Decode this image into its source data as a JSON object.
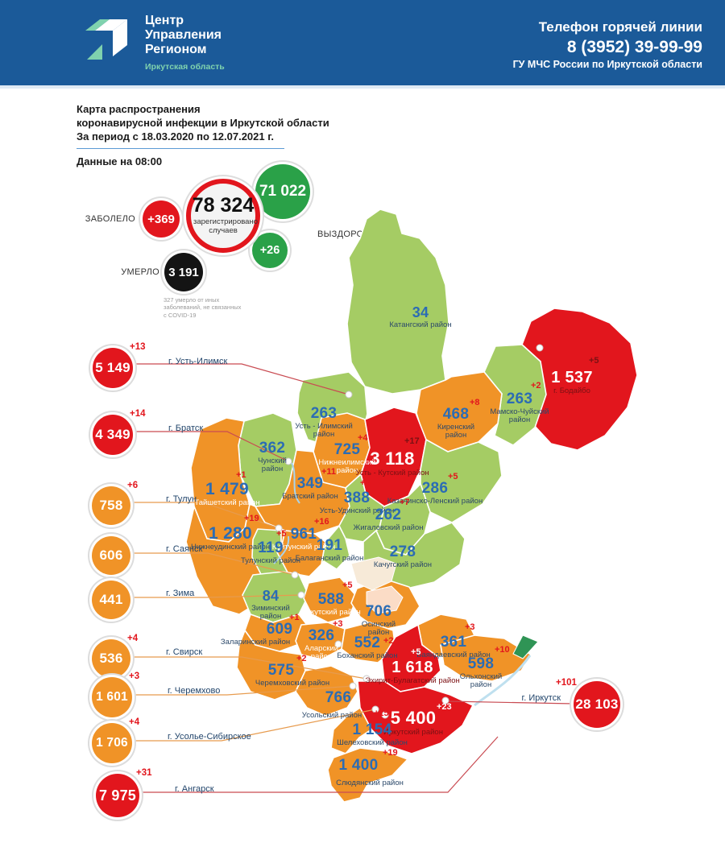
{
  "header": {
    "org_line1": "Центр",
    "org_line2": "Управления",
    "org_line3": "Регионом",
    "org_region": "Иркутская область",
    "hotline_title": "Телефон горячей линии",
    "hotline_phone": "8 (3952) 39-99-99",
    "hotline_org": "ГУ МЧС России по Иркутской области"
  },
  "title": {
    "line1": "Карта распространения",
    "line2": "коронавирусной инфекции в Иркутской области",
    "line3": "За период с 18.03.2020 по 12.07.2021 г.",
    "data_time": "Данные на 08:00"
  },
  "stats": {
    "sick_label": "ЗАБОЛЕЛО",
    "sick_delta": "+369",
    "registered_value": "78 324",
    "registered_caption": "зарегистрировано случаев",
    "recovered_value": "71 022",
    "recovered_label": "ВЫЗДОРОВЕЛО",
    "recovered_delta": "+26",
    "died_label": "УМЕРЛО",
    "died_value": "3 191",
    "died_footnote": "327 умерло от иных заболеваний, не связанных с COVID-19"
  },
  "colors": {
    "header_bg": "#1b5a99",
    "logo_green": "#7fd2ae",
    "status": {
      "green": "#a5cc64",
      "orange": "#f09327",
      "red": "#e2161d"
    },
    "stat_green": "#2aa148",
    "stat_red": "#e2161d",
    "stat_black": "#141414",
    "number_blue": "#2b6cb4",
    "label_navy": "#2d4a6b",
    "label_maroon": "#7c1114",
    "delta_red": "#e2161d",
    "line_red": "#c94b52",
    "line_orange": "#e79b4e"
  },
  "cities": [
    {
      "id": "ust_ilimsk",
      "name": "г. Усть-Илимск",
      "value": "5 149",
      "delta": "+13",
      "status": "red"
    },
    {
      "id": "bratsk",
      "name": "г. Братск",
      "value": "4 349",
      "delta": "+14",
      "status": "red"
    },
    {
      "id": "tulun",
      "name": "г. Тулун",
      "value": "758",
      "delta": "+6",
      "status": "orange"
    },
    {
      "id": "sayansk",
      "name": "г. Саянск",
      "value": "606",
      "delta": "",
      "status": "orange"
    },
    {
      "id": "zima",
      "name": "г. Зима",
      "value": "441",
      "delta": "",
      "status": "orange"
    },
    {
      "id": "svirsk",
      "name": "г. Свирск",
      "value": "536",
      "delta": "+4",
      "status": "orange"
    },
    {
      "id": "cheremkhovo",
      "name": "г. Черемхово",
      "value": "1 601",
      "delta": "+3",
      "status": "orange"
    },
    {
      "id": "usolye",
      "name": "г. Усолье-Сибирское",
      "value": "1 706",
      "delta": "+4",
      "status": "orange"
    },
    {
      "id": "angarsk",
      "name": "г. Ангарск",
      "value": "7 975",
      "delta": "+31",
      "status": "red"
    },
    {
      "id": "irkutsk",
      "name": "г. Иркутск",
      "value": "28 103",
      "delta": "+101",
      "status": "red"
    }
  ],
  "districts": [
    {
      "id": "katangsky",
      "name": "Катангский район",
      "value": "34",
      "delta": "",
      "status": "green"
    },
    {
      "id": "ust_ilimsky",
      "name": "Усть - Илимский район",
      "value": "263",
      "delta": "",
      "status": "green"
    },
    {
      "id": "kirensky",
      "name": "Киренский район",
      "value": "468",
      "delta": "+8",
      "status": "orange"
    },
    {
      "id": "mamsko_chuysky",
      "name": "Мамско-Чуйский район",
      "value": "263",
      "delta": "+2",
      "status": "green"
    },
    {
      "id": "bodaibinsky",
      "name": "г. Бодайбо",
      "value": "1 537",
      "delta": "+5",
      "status": "red"
    },
    {
      "id": "chunsky",
      "name": "Чунский район",
      "value": "362",
      "delta": "",
      "status": "green"
    },
    {
      "id": "nizhneilimsky",
      "name": "Нижнеилимский район",
      "value": "725",
      "delta": "+4",
      "status": "orange"
    },
    {
      "id": "ust_kutsky",
      "name": "Усть - Кутский район",
      "value": "3 118",
      "delta": "+17",
      "status": "red"
    },
    {
      "id": "kazachinsko_lensky",
      "name": "Казачинско-Ленский район",
      "value": "286",
      "delta": "+5",
      "status": "green"
    },
    {
      "id": "taishetsky",
      "name": "Тайшетский район",
      "value": "1 479",
      "delta": "+1",
      "status": "orange"
    },
    {
      "id": "bratsky",
      "name": "Братский район",
      "value": "349",
      "delta": "+11",
      "status": "orange"
    },
    {
      "id": "ust_udinsky",
      "name": "Усть-Удинский район",
      "value": "388",
      "delta": "+5",
      "status": "green"
    },
    {
      "id": "zhigalovsky",
      "name": "Жигаловский район",
      "value": "262",
      "delta": "+7",
      "status": "green"
    },
    {
      "id": "kachugsky",
      "name": "Качугский район",
      "value": "278",
      "delta": "",
      "status": "green"
    },
    {
      "id": "nizhneudinsky",
      "name": "Нижнеудинский район",
      "value": "1 280",
      "delta": "+19",
      "status": "orange"
    },
    {
      "id": "kuitunsky",
      "name": "Куйтунский район",
      "value": "961",
      "delta": "+16",
      "status": "orange"
    },
    {
      "id": "tulunsky",
      "name": "Тулунский район",
      "value": "119",
      "delta": "+5",
      "status": "green"
    },
    {
      "id": "balagansky",
      "name": "Балаганский район",
      "value": "191",
      "delta": "",
      "status": "green"
    },
    {
      "id": "ziminsky",
      "name": "Зиминский район",
      "value": "84",
      "delta": "",
      "status": "green"
    },
    {
      "id": "nukutsky",
      "name": "Нукутский район",
      "value": "588",
      "delta": "+5",
      "status": "orange"
    },
    {
      "id": "zalarinsky",
      "name": "Заларинский район",
      "value": "609",
      "delta": "+1",
      "status": "orange"
    },
    {
      "id": "alarsky",
      "name": "Аларский район",
      "value": "326",
      "delta": "+3",
      "status": "orange"
    },
    {
      "id": "osinsky",
      "name": "Осинский район",
      "value": "706",
      "delta": "",
      "status": "orange"
    },
    {
      "id": "bokhansky",
      "name": "Боханский район",
      "value": "552",
      "delta": "+2",
      "status": "orange"
    },
    {
      "id": "bayandaevsky",
      "name": "Баяндаевский район",
      "value": "361",
      "delta": "+3",
      "status": "orange"
    },
    {
      "id": "ekhirit_bulagatsky",
      "name": "Эхирит-Булагатский район",
      "value": "1 618",
      "delta": "+5",
      "status": "red"
    },
    {
      "id": "olkhonsky",
      "name": "Ольхонский район",
      "value": "598",
      "delta": "+10",
      "status": "orange"
    },
    {
      "id": "cheremkhovsky",
      "name": "Черемховский район",
      "value": "575",
      "delta": "+2",
      "status": "orange"
    },
    {
      "id": "usolsky",
      "name": "Усольский район",
      "value": "766",
      "delta": "",
      "status": "orange"
    },
    {
      "id": "irkutsky",
      "name": "Иркутский район",
      "value": "5 400",
      "delta": "+23",
      "status": "red"
    },
    {
      "id": "shelekhovsky",
      "name": "Шелеховский район",
      "value": "1 154",
      "delta": "+15",
      "status": "orange"
    },
    {
      "id": "slyudyansky",
      "name": "Слюдянский район",
      "value": "1 400",
      "delta": "+19",
      "status": "orange"
    }
  ]
}
